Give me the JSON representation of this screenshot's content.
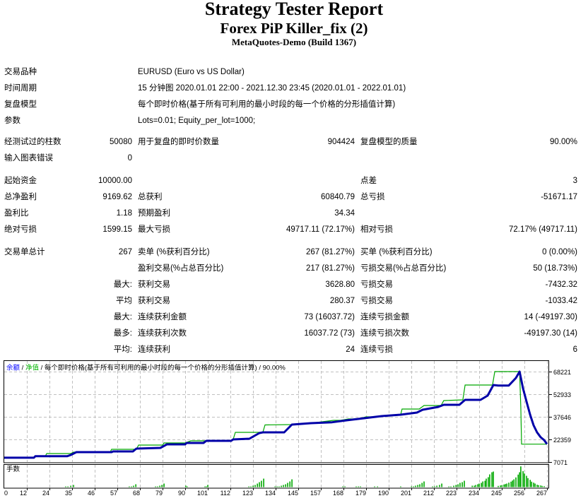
{
  "report": {
    "title": "Strategy Tester Report",
    "expert": "Forex PiP Killer_fix (2)",
    "server": "MetaQuotes-Demo (Build 1367)"
  },
  "settings": [
    {
      "label": "交易品种",
      "value": "EURUSD (Euro vs US Dollar)"
    },
    {
      "label": "时间周期",
      "value": "15 分钟图 2020.01.01 22:00 - 2021.12.30 23:45 (2020.01.01 - 2022.01.01)"
    },
    {
      "label": "复盘模型",
      "value": "每个即时价格(基于所有可利用的最小时段的每一个价格的分形插值计算)"
    },
    {
      "label": "参数",
      "value": "Lots=0.01; Equity_per_lot=1000;"
    }
  ],
  "stats": [
    [
      "经测试过的柱数",
      "50080",
      "用于复盘的即时价数量",
      "904424",
      "复盘模型的质量",
      "90.00%"
    ],
    [
      "输入图表错误",
      "0",
      "",
      "",
      "",
      ""
    ],
    [
      "起始资金",
      "10000.00",
      "",
      "",
      "点差",
      "3"
    ],
    [
      "总净盈利",
      "9169.62",
      "总获利",
      "60840.79",
      "总亏损",
      "-51671.17"
    ],
    [
      "盈利比",
      "1.18",
      "预期盈利",
      "34.34",
      "",
      ""
    ],
    [
      "绝对亏损",
      "1599.15",
      "最大亏损",
      "49717.11 (72.17%)",
      "相对亏损",
      "72.17% (49717.11)"
    ],
    [
      "交易单总计",
      "267",
      "卖单 (%获利百分比)",
      "267 (81.27%)",
      "买单 (%获利百分比)",
      "0 (0.00%)"
    ],
    [
      "",
      "",
      "盈利交易(%占总百分比)",
      "217 (81.27%)",
      "亏损交易(%占总百分比)",
      "50 (18.73%)"
    ],
    [
      "",
      "最大:",
      "获利交易",
      "3628.80",
      "亏损交易",
      "-7432.32"
    ],
    [
      "",
      "平均",
      "获利交易",
      "280.37",
      "亏损交易",
      "-1033.42"
    ],
    [
      "",
      "最大:",
      "连续获利金额",
      "73 (16037.72)",
      "连续亏损金额",
      "14 (-49197.30)"
    ],
    [
      "",
      "最多:",
      "连续获利次数",
      "16037.72 (73)",
      "连续亏损次数",
      "-49197.30 (14)"
    ],
    [
      "",
      "平均:",
      "连续获利",
      "24",
      "连续亏损",
      "6"
    ]
  ],
  "chart_data": {
    "type": "line",
    "title": "余额 / 净值 / 每个即时价格(基于所有可利用的最小时段的每一个价格的分形插值计算) / 90.00%",
    "header_parts": [
      "余额",
      " / ",
      "净值",
      " / 每个即时价格(基于所有可利用的最小时段的每一个价格的分形插值计算) / 90.00%"
    ],
    "legend": [
      "余额",
      "净值"
    ],
    "legend_position": "top-left",
    "xlabel": "",
    "ylabel": "",
    "grid": true,
    "xlim": [
      0,
      267
    ],
    "ylim": [
      7071,
      68221
    ],
    "x_ticks": [
      0,
      12,
      24,
      35,
      46,
      57,
      68,
      79,
      90,
      101,
      112,
      123,
      134,
      145,
      157,
      168,
      179,
      190,
      201,
      212,
      223,
      234,
      245,
      256,
      267
    ],
    "y_ticks": [
      68221,
      52933,
      37646,
      22359,
      7071
    ],
    "colors": {
      "balance": "#0000a8",
      "equity": "#00a800",
      "legend_balance": "#0000ff",
      "legend_equity": "#00b400",
      "grid": "#c0c0c0",
      "volume": "#00a800"
    },
    "series": [
      {
        "name": "余额",
        "points": [
          [
            0,
            10000
          ],
          [
            14.6,
            10000
          ],
          [
            15.3,
            11000
          ],
          [
            30.9,
            11000
          ],
          [
            32.7,
            11850
          ],
          [
            35.5,
            13760
          ],
          [
            52.8,
            13760
          ],
          [
            53.5,
            14240
          ],
          [
            63.3,
            14240
          ],
          [
            65.0,
            16150
          ],
          [
            76.8,
            16625
          ],
          [
            80.0,
            19010
          ],
          [
            89.0,
            19010
          ],
          [
            89.7,
            19970
          ],
          [
            98.0,
            19970
          ],
          [
            99.4,
            21400
          ],
          [
            111.6,
            21400
          ],
          [
            112.6,
            22360
          ],
          [
            120.6,
            22835
          ],
          [
            122.4,
            24270
          ],
          [
            125.5,
            26660
          ],
          [
            127.2,
            27135
          ],
          [
            137.7,
            27135
          ],
          [
            141.5,
            32390
          ],
          [
            150.9,
            33345
          ],
          [
            161.3,
            33970
          ],
          [
            168.3,
            35256
          ],
          [
            177.0,
            36690
          ],
          [
            185.7,
            38120
          ],
          [
            195.0,
            39080
          ],
          [
            203.0,
            40510
          ],
          [
            205.8,
            42420
          ],
          [
            213.5,
            44330
          ],
          [
            216.2,
            45765
          ],
          [
            223.9,
            45765
          ],
          [
            226.7,
            49110
          ],
          [
            234.3,
            49110
          ],
          [
            237.8,
            51980
          ],
          [
            240.6,
            59140
          ],
          [
            243.0,
            58810
          ],
          [
            248.2,
            58810
          ],
          [
            251.7,
            63920
          ],
          [
            253.5,
            68221
          ],
          [
            255.2,
            56755
          ],
          [
            256.9,
            48155
          ],
          [
            258.7,
            39080
          ],
          [
            260.4,
            31910
          ],
          [
            262.1,
            27135
          ],
          [
            263.9,
            23790
          ],
          [
            265.6,
            21880
          ],
          [
            267,
            19170
          ]
        ]
      },
      {
        "name": "净值",
        "points": [
          [
            0,
            10000
          ],
          [
            14.6,
            10000
          ],
          [
            15.3,
            11000
          ],
          [
            20.2,
            11000
          ],
          [
            20.9,
            12800
          ],
          [
            32.7,
            12800
          ],
          [
            34.1,
            13760
          ],
          [
            52.1,
            13760
          ],
          [
            52.8,
            15670
          ],
          [
            65.0,
            15670
          ],
          [
            66.1,
            18535
          ],
          [
            77.9,
            18535
          ],
          [
            78.6,
            19970
          ],
          [
            89.0,
            19970
          ],
          [
            91.8,
            21400
          ],
          [
            111.6,
            21400
          ],
          [
            112.6,
            22360
          ],
          [
            113.7,
            27135
          ],
          [
            127.2,
            27135
          ],
          [
            128.3,
            32150
          ],
          [
            141.5,
            32390
          ],
          [
            150.9,
            33345
          ],
          [
            162.0,
            35260
          ],
          [
            165.5,
            35260
          ],
          [
            169.3,
            36215
          ],
          [
            174.2,
            36215
          ],
          [
            178.0,
            37645
          ],
          [
            182.2,
            37645
          ],
          [
            185.7,
            38120
          ],
          [
            195.0,
            39080
          ],
          [
            195.7,
            42900
          ],
          [
            204.1,
            42900
          ],
          [
            206.5,
            45290
          ],
          [
            214.9,
            45290
          ],
          [
            216.2,
            48630
          ],
          [
            225.6,
            49110
          ],
          [
            226.7,
            59140
          ],
          [
            240.2,
            59140
          ],
          [
            241.3,
            68221
          ],
          [
            253.5,
            68221
          ],
          [
            254.1,
            44330
          ],
          [
            254.5,
            19170
          ],
          [
            267,
            19170
          ]
        ]
      }
    ],
    "volume_panel": {
      "label": "手数",
      "bars_trade_relative_height": [
        [
          30.2,
          1
        ],
        [
          31.3,
          1
        ],
        [
          32.7,
          2
        ],
        [
          34.1,
          3
        ],
        [
          61.5,
          1
        ],
        [
          62.6,
          1
        ],
        [
          63.6,
          2
        ],
        [
          64.7,
          4
        ],
        [
          74.4,
          1
        ],
        [
          75.4,
          1
        ],
        [
          76.5,
          2
        ],
        [
          77.5,
          3
        ],
        [
          78.6,
          5
        ],
        [
          89.3,
          2
        ],
        [
          90.0,
          1
        ],
        [
          98.7,
          1
        ],
        [
          99.4,
          1
        ],
        [
          100.1,
          3
        ],
        [
          120.3,
          1
        ],
        [
          121.3,
          1
        ],
        [
          122.4,
          2
        ],
        [
          123.4,
          3
        ],
        [
          124.5,
          5
        ],
        [
          125.5,
          7
        ],
        [
          126.5,
          9
        ],
        [
          127.6,
          12
        ],
        [
          133.2,
          1
        ],
        [
          134.2,
          1
        ],
        [
          135.2,
          1
        ],
        [
          136.3,
          2
        ],
        [
          137.3,
          3
        ],
        [
          138.4,
          4
        ],
        [
          139.4,
          6
        ],
        [
          140.5,
          8
        ],
        [
          141.5,
          11
        ],
        [
          166.5,
          1
        ],
        [
          167.6,
          1
        ],
        [
          173.1,
          1
        ],
        [
          174.2,
          1
        ],
        [
          175.2,
          1
        ],
        [
          182.2,
          1
        ],
        [
          183.6,
          1
        ],
        [
          195.0,
          1
        ],
        [
          200.3,
          1
        ],
        [
          201.3,
          1
        ],
        [
          202.3,
          2
        ],
        [
          203.4,
          3
        ],
        [
          204.4,
          4
        ],
        [
          205.5,
          6
        ],
        [
          206.5,
          8
        ],
        [
          210.7,
          1
        ],
        [
          211.7,
          1
        ],
        [
          212.8,
          2
        ],
        [
          214.1,
          3
        ],
        [
          215.2,
          5
        ],
        [
          218.7,
          1
        ],
        [
          219.7,
          1
        ],
        [
          221.1,
          2
        ],
        [
          222.2,
          3
        ],
        [
          223.2,
          4
        ],
        [
          224.2,
          6
        ],
        [
          225.3,
          7
        ],
        [
          226.3,
          9
        ],
        [
          230.2,
          2
        ],
        [
          231.2,
          2
        ],
        [
          231.9,
          3
        ],
        [
          232.9,
          4
        ],
        [
          233.6,
          5
        ],
        [
          234.7,
          6
        ],
        [
          235.4,
          8
        ],
        [
          236.5,
          9
        ],
        [
          237.1,
          12
        ],
        [
          238.1,
          14
        ],
        [
          238.8,
          18
        ],
        [
          239.9,
          21
        ],
        [
          240.6,
          22
        ],
        [
          243.0,
          1.7
        ],
        [
          244.1,
          2.3
        ],
        [
          244.8,
          2.7
        ],
        [
          245.8,
          3.7
        ],
        [
          246.5,
          4.3
        ],
        [
          247.2,
          5
        ],
        [
          248.2,
          6.3
        ],
        [
          249.3,
          7.7
        ],
        [
          250.0,
          9.3
        ],
        [
          250.7,
          11
        ],
        [
          251.7,
          13.7
        ],
        [
          252.8,
          17.7
        ],
        [
          253.5,
          21
        ],
        [
          254.1,
          29.3
        ],
        [
          255.2,
          22.7
        ],
        [
          255.9,
          19.3
        ],
        [
          256.9,
          16
        ],
        [
          257.6,
          12.7
        ],
        [
          258.7,
          10.3
        ],
        [
          259.4,
          7.7
        ],
        [
          260.4,
          6.3
        ],
        [
          261.1,
          5
        ],
        [
          262.1,
          3.3
        ],
        [
          262.8,
          2.7
        ],
        [
          263.9,
          2.3
        ],
        [
          264.6,
          1.7
        ],
        [
          265.6,
          1.3
        ]
      ]
    }
  }
}
